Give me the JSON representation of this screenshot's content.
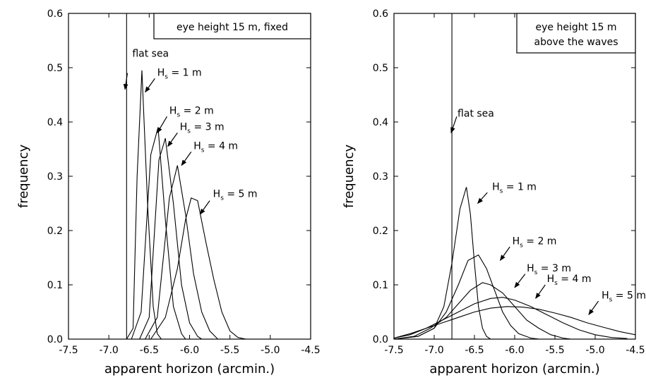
{
  "chart_data": [
    {
      "type": "line",
      "xlabel": "apparent horizon (arcmin.)",
      "ylabel": "frequency",
      "xlim": [
        -7.5,
        -4.5
      ],
      "ylim": [
        0,
        0.6
      ],
      "xticks": [
        "-7.5",
        "-7.0",
        "-6.5",
        "-6.0",
        "-5.5",
        "-5.0",
        "-4.5"
      ],
      "yticks": [
        "0.0",
        "0.1",
        "0.2",
        "0.3",
        "0.4",
        "0.5",
        "0.6"
      ],
      "grid": false,
      "box_lines": [
        "eye height 15 m, fixed"
      ],
      "reference_line": {
        "x": -6.78,
        "label": "flat sea"
      },
      "series": [
        {
          "name": "H_s = 1 m",
          "hs": "1",
          "points": [
            [
              -6.78,
              0
            ],
            [
              -6.7,
              0.02
            ],
            [
              -6.65,
              0.3
            ],
            [
              -6.59,
              0.495
            ],
            [
              -6.52,
              0.25
            ],
            [
              -6.45,
              0.06
            ],
            [
              -6.4,
              0.01
            ],
            [
              -6.35,
              0
            ]
          ]
        },
        {
          "name": "H_s = 2 m",
          "hs": "2",
          "points": [
            [
              -6.72,
              0
            ],
            [
              -6.6,
              0.05
            ],
            [
              -6.48,
              0.34
            ],
            [
              -6.39,
              0.39
            ],
            [
              -6.3,
              0.22
            ],
            [
              -6.2,
              0.06
            ],
            [
              -6.1,
              0.01
            ],
            [
              -6.05,
              0
            ]
          ]
        },
        {
          "name": "H_s = 3 m",
          "hs": "3",
          "points": [
            [
              -6.62,
              0
            ],
            [
              -6.5,
              0.04
            ],
            [
              -6.38,
              0.33
            ],
            [
              -6.3,
              0.37
            ],
            [
              -6.2,
              0.25
            ],
            [
              -6.1,
              0.1
            ],
            [
              -6.0,
              0.03
            ],
            [
              -5.9,
              0.005
            ],
            [
              -5.85,
              0
            ]
          ]
        },
        {
          "name": "H_s = 4 m",
          "hs": "4",
          "points": [
            [
              -6.55,
              0
            ],
            [
              -6.4,
              0.04
            ],
            [
              -6.25,
              0.26
            ],
            [
              -6.15,
              0.32
            ],
            [
              -6.05,
              0.23
            ],
            [
              -5.95,
              0.12
            ],
            [
              -5.85,
              0.05
            ],
            [
              -5.75,
              0.015
            ],
            [
              -5.65,
              0
            ]
          ]
        },
        {
          "name": "H_s = 5 m",
          "hs": "5",
          "points": [
            [
              -6.48,
              0
            ],
            [
              -6.3,
              0.04
            ],
            [
              -6.15,
              0.13
            ],
            [
              -6.05,
              0.22
            ],
            [
              -5.98,
              0.26
            ],
            [
              -5.9,
              0.255
            ],
            [
              -5.8,
              0.18
            ],
            [
              -5.7,
              0.11
            ],
            [
              -5.6,
              0.05
            ],
            [
              -5.5,
              0.015
            ],
            [
              -5.4,
              0.003
            ],
            [
              -5.3,
              0
            ]
          ]
        }
      ],
      "annotations": [
        {
          "kind": "ref",
          "text": "flat sea",
          "tx": -6.71,
          "ty": 0.52,
          "ax": -6.77,
          "ay": 0.49,
          "tipx": -6.8,
          "tipy": 0.46
        },
        {
          "kind": "hs",
          "hs": "1",
          "tx": -6.4,
          "ty": 0.485,
          "ax": -6.43,
          "ay": 0.48,
          "tipx": -6.55,
          "tipy": 0.455
        },
        {
          "kind": "hs",
          "hs": "2",
          "tx": -6.25,
          "ty": 0.415,
          "ax": -6.28,
          "ay": 0.41,
          "tipx": -6.4,
          "tipy": 0.38
        },
        {
          "kind": "hs",
          "hs": "3",
          "tx": -6.12,
          "ty": 0.385,
          "ax": -6.15,
          "ay": 0.38,
          "tipx": -6.27,
          "tipy": 0.355
        },
        {
          "kind": "hs",
          "hs": "4",
          "tx": -5.95,
          "ty": 0.35,
          "ax": -5.98,
          "ay": 0.345,
          "tipx": -6.1,
          "tipy": 0.32
        },
        {
          "kind": "hs",
          "hs": "5",
          "tx": -5.71,
          "ty": 0.262,
          "ax": -5.75,
          "ay": 0.255,
          "tipx": -5.87,
          "tipy": 0.23
        }
      ]
    },
    {
      "type": "line",
      "xlabel": "apparent horizon (arcmin.)",
      "ylabel": "frequency",
      "xlim": [
        -7.5,
        -4.5
      ],
      "ylim": [
        0,
        0.6
      ],
      "xticks": [
        "-7.5",
        "-7.0",
        "-6.5",
        "-6.0",
        "-5.5",
        "-5.0",
        "-4.5"
      ],
      "yticks": [
        "0.0",
        "0.1",
        "0.2",
        "0.3",
        "0.4",
        "0.5",
        "0.6"
      ],
      "grid": false,
      "box_lines": [
        "eye height 15 m",
        "above the waves"
      ],
      "reference_line": {
        "x": -6.78,
        "label": "flat sea"
      },
      "series": [
        {
          "name": "H_s = 1 m",
          "hs": "1",
          "points": [
            [
              -7.5,
              0
            ],
            [
              -7.2,
              0.005
            ],
            [
              -7.0,
              0.02
            ],
            [
              -6.88,
              0.06
            ],
            [
              -6.78,
              0.14
            ],
            [
              -6.68,
              0.24
            ],
            [
              -6.6,
              0.28
            ],
            [
              -6.55,
              0.23
            ],
            [
              -6.5,
              0.14
            ],
            [
              -6.45,
              0.06
            ],
            [
              -6.4,
              0.02
            ],
            [
              -6.35,
              0.005
            ],
            [
              -6.3,
              0
            ]
          ]
        },
        {
          "name": "H_s = 2 m",
          "hs": "2",
          "points": [
            [
              -7.5,
              0
            ],
            [
              -7.2,
              0.005
            ],
            [
              -7.0,
              0.02
            ],
            [
              -6.85,
              0.05
            ],
            [
              -6.7,
              0.1
            ],
            [
              -6.58,
              0.145
            ],
            [
              -6.45,
              0.155
            ],
            [
              -6.35,
              0.13
            ],
            [
              -6.25,
              0.09
            ],
            [
              -6.15,
              0.05
            ],
            [
              -6.05,
              0.025
            ],
            [
              -5.95,
              0.01
            ],
            [
              -5.8,
              0.002
            ],
            [
              -5.7,
              0
            ]
          ]
        },
        {
          "name": "H_s = 3 m",
          "hs": "3",
          "points": [
            [
              -7.5,
              0
            ],
            [
              -7.25,
              0.005
            ],
            [
              -7.05,
              0.02
            ],
            [
              -6.85,
              0.04
            ],
            [
              -6.7,
              0.065
            ],
            [
              -6.55,
              0.09
            ],
            [
              -6.4,
              0.104
            ],
            [
              -6.3,
              0.1
            ],
            [
              -6.15,
              0.085
            ],
            [
              -6.0,
              0.06
            ],
            [
              -5.85,
              0.035
            ],
            [
              -5.7,
              0.02
            ],
            [
              -5.55,
              0.008
            ],
            [
              -5.4,
              0.002
            ],
            [
              -5.3,
              0
            ]
          ]
        },
        {
          "name": "H_s = 4 m",
          "hs": "4",
          "points": [
            [
              -7.5,
              0.002
            ],
            [
              -7.3,
              0.008
            ],
            [
              -7.1,
              0.02
            ],
            [
              -6.9,
              0.035
            ],
            [
              -6.7,
              0.05
            ],
            [
              -6.5,
              0.065
            ],
            [
              -6.3,
              0.075
            ],
            [
              -6.15,
              0.077
            ],
            [
              -6.0,
              0.072
            ],
            [
              -5.8,
              0.06
            ],
            [
              -5.6,
              0.045
            ],
            [
              -5.4,
              0.03
            ],
            [
              -5.2,
              0.017
            ],
            [
              -5.0,
              0.008
            ],
            [
              -4.8,
              0.003
            ],
            [
              -4.6,
              0.001
            ]
          ]
        },
        {
          "name": "H_s = 5 m",
          "hs": "5",
          "points": [
            [
              -7.5,
              0.002
            ],
            [
              -7.3,
              0.01
            ],
            [
              -7.1,
              0.02
            ],
            [
              -6.9,
              0.03
            ],
            [
              -6.7,
              0.04
            ],
            [
              -6.5,
              0.05
            ],
            [
              -6.3,
              0.057
            ],
            [
              -6.1,
              0.06
            ],
            [
              -5.9,
              0.059
            ],
            [
              -5.7,
              0.055
            ],
            [
              -5.5,
              0.048
            ],
            [
              -5.3,
              0.04
            ],
            [
              -5.1,
              0.03
            ],
            [
              -4.9,
              0.022
            ],
            [
              -4.7,
              0.014
            ],
            [
              -4.5,
              0.008
            ]
          ]
        }
      ],
      "annotations": [
        {
          "kind": "ref",
          "text": "flat sea",
          "tx": -6.71,
          "ty": 0.41,
          "ax": -6.72,
          "ay": 0.41,
          "tipx": -6.79,
          "tipy": 0.38
        },
        {
          "kind": "hs",
          "hs": "1",
          "tx": -6.28,
          "ty": 0.275,
          "ax": -6.34,
          "ay": 0.27,
          "tipx": -6.46,
          "tipy": 0.25
        },
        {
          "kind": "hs",
          "hs": "2",
          "tx": -6.03,
          "ty": 0.175,
          "ax": -6.06,
          "ay": 0.17,
          "tipx": -6.18,
          "tipy": 0.145
        },
        {
          "kind": "hs",
          "hs": "3",
          "tx": -5.85,
          "ty": 0.125,
          "ax": -5.87,
          "ay": 0.12,
          "tipx": -6.0,
          "tipy": 0.095
        },
        {
          "kind": "hs",
          "hs": "4",
          "tx": -5.6,
          "ty": 0.105,
          "ax": -5.62,
          "ay": 0.1,
          "tipx": -5.74,
          "tipy": 0.075
        },
        {
          "kind": "hs",
          "hs": "5",
          "tx": -4.92,
          "ty": 0.075,
          "ax": -4.96,
          "ay": 0.07,
          "tipx": -5.08,
          "tipy": 0.045
        }
      ]
    }
  ]
}
